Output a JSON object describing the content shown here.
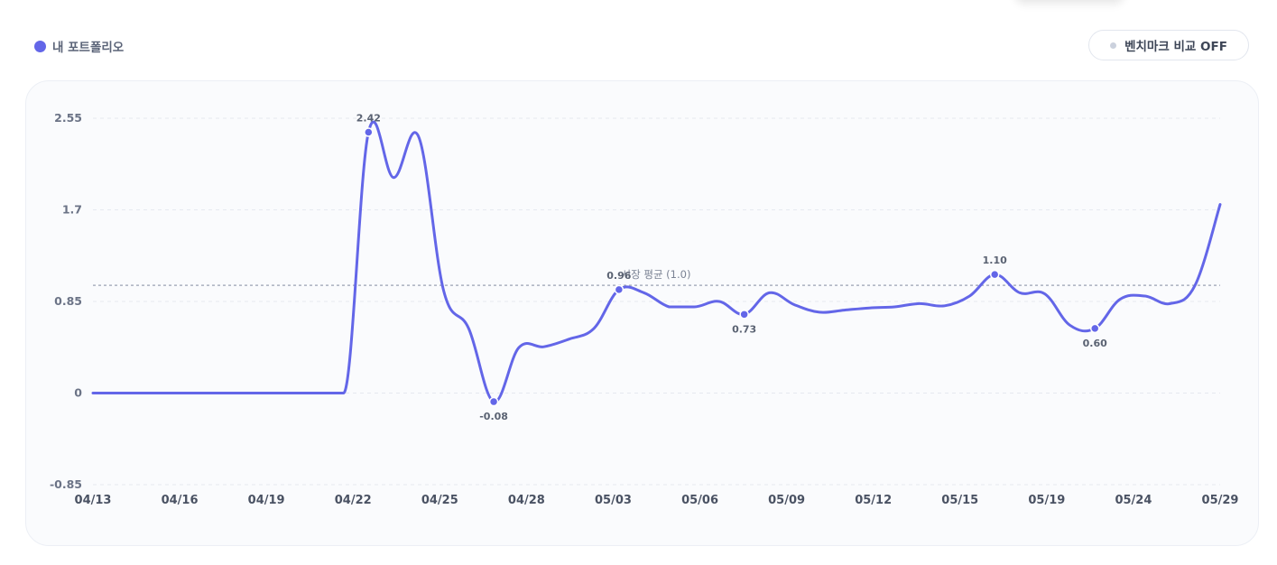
{
  "legend": {
    "label": "내 포트폴리오",
    "color": "#6366e8"
  },
  "benchmark_toggle": {
    "label": "벤치마크 비교 OFF"
  },
  "chart_data": {
    "type": "line",
    "series": [
      {
        "values": [
          0,
          0,
          0,
          0,
          0,
          0,
          0,
          0,
          0,
          0,
          0,
          2.42,
          2.0,
          2.38,
          0.95,
          0.6,
          -0.08,
          0.42,
          0.43,
          0.5,
          0.6,
          0.96,
          0.93,
          0.8,
          0.8,
          0.85,
          0.73,
          0.93,
          0.82,
          0.75,
          0.77,
          0.79,
          0.8,
          0.83,
          0.81,
          0.9,
          1.1,
          0.93,
          0.92,
          0.63,
          0.6,
          0.87,
          0.9,
          0.83,
          1.0,
          1.75
        ],
        "color": "#6366e8"
      }
    ],
    "x_tick_labels": [
      "04/13",
      "04/16",
      "04/19",
      "04/22",
      "04/25",
      "04/28",
      "05/03",
      "05/06",
      "05/09",
      "05/12",
      "05/15",
      "05/19",
      "05/24",
      "05/29"
    ],
    "y_ticks": [
      {
        "value": -0.85,
        "label": "-0.85"
      },
      {
        "value": 0,
        "label": "0"
      },
      {
        "value": 0.85,
        "label": "0.85"
      },
      {
        "value": 1.7,
        "label": "1.7"
      },
      {
        "value": 2.55,
        "label": "2.55"
      }
    ],
    "ylim": [
      -0.85,
      2.55
    ],
    "reference_line": {
      "value": 1.0,
      "label": "시장 평균 (1.0)"
    },
    "annotations": [
      {
        "index": 11,
        "value": 2.42,
        "label": "2.42",
        "position": "above"
      },
      {
        "index": 16,
        "value": -0.08,
        "label": "-0.08",
        "position": "below"
      },
      {
        "index": 21,
        "value": 0.96,
        "label": "0.96",
        "position": "above"
      },
      {
        "index": 26,
        "value": 0.73,
        "label": "0.73",
        "position": "below"
      },
      {
        "index": 36,
        "value": 1.1,
        "label": "1.10",
        "position": "above"
      },
      {
        "index": 40,
        "value": 0.6,
        "label": "0.60",
        "position": "below"
      }
    ],
    "grid": true
  }
}
